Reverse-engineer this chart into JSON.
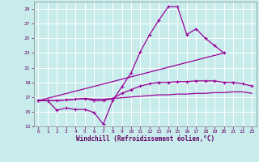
{
  "xlabel": "Windchill (Refroidissement éolien,°C)",
  "bg_color": "#c8ecec",
  "grid_color": "#ffffff",
  "line_color": "#990099",
  "xlim": [
    -0.5,
    23.5
  ],
  "ylim": [
    13,
    30
  ],
  "xticks": [
    0,
    1,
    2,
    3,
    4,
    5,
    6,
    7,
    8,
    9,
    10,
    11,
    12,
    13,
    14,
    15,
    16,
    17,
    18,
    19,
    20,
    21,
    22,
    23
  ],
  "yticks": [
    13,
    15,
    17,
    19,
    21,
    23,
    25,
    27,
    29
  ],
  "series": [
    {
      "x": [
        0,
        1,
        2,
        3,
        4,
        5,
        6,
        7,
        8,
        9,
        10,
        11,
        12,
        13,
        14,
        15,
        16,
        17,
        18,
        19,
        20
      ],
      "y": [
        16.5,
        16.5,
        15.2,
        15.5,
        15.3,
        15.3,
        14.9,
        13.3,
        16.5,
        18.4,
        20.3,
        23.2,
        25.5,
        27.5,
        29.3,
        29.3,
        25.5,
        26.3,
        25.0,
        24.0,
        23.0
      ],
      "marker": true
    },
    {
      "x": [
        0,
        20
      ],
      "y": [
        16.5,
        23.0
      ],
      "marker": false
    },
    {
      "x": [
        0,
        1,
        2,
        3,
        4,
        5,
        6,
        7,
        8,
        9,
        10,
        11,
        12,
        13,
        14,
        15,
        16,
        17,
        18,
        19,
        20,
        21,
        22,
        23
      ],
      "y": [
        16.5,
        16.5,
        16.5,
        16.6,
        16.7,
        16.8,
        16.5,
        16.5,
        16.8,
        17.5,
        18.0,
        18.5,
        18.8,
        19.0,
        19.0,
        19.1,
        19.1,
        19.2,
        19.2,
        19.2,
        19.0,
        19.0,
        18.8,
        18.5
      ],
      "marker": true
    },
    {
      "x": [
        0,
        1,
        2,
        3,
        4,
        5,
        6,
        7,
        8,
        9,
        10,
        11,
        12,
        13,
        14,
        15,
        16,
        17,
        18,
        19,
        20,
        21,
        22,
        23
      ],
      "y": [
        16.5,
        16.5,
        16.5,
        16.6,
        16.7,
        16.8,
        16.7,
        16.7,
        16.8,
        16.9,
        17.0,
        17.1,
        17.2,
        17.3,
        17.3,
        17.4,
        17.4,
        17.5,
        17.5,
        17.6,
        17.6,
        17.7,
        17.7,
        17.5
      ],
      "marker": false
    }
  ]
}
